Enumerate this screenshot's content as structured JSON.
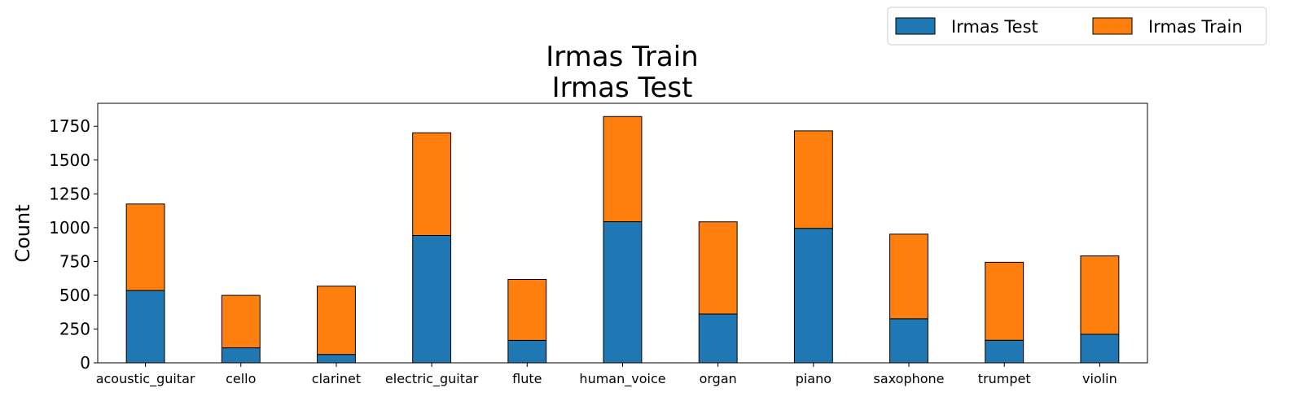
{
  "chart_data": {
    "type": "bar",
    "stacked": true,
    "title_lines": [
      "Irmas Train",
      "Irmas Test"
    ],
    "xlabel": "",
    "ylabel": "Count",
    "ylim": [
      0,
      1920
    ],
    "yticks": [
      0,
      250,
      500,
      750,
      1000,
      1250,
      1500,
      1750
    ],
    "grid": false,
    "legend_placement": "top-right, outside plot",
    "categories": [
      "acoustic_guitar",
      "cello",
      "clarinet",
      "electric_guitar",
      "flute",
      "human_voice",
      "organ",
      "piano",
      "saxophone",
      "trumpet",
      "violin"
    ],
    "series": [
      {
        "name": "Irmas Test",
        "color": "#1f77b4",
        "values": [
          535,
          111,
          62,
          942,
          166,
          1044,
          361,
          995,
          326,
          167,
          211
        ]
      },
      {
        "name": "Irmas Train",
        "color": "#ff7f0e",
        "values": [
          640,
          388,
          505,
          760,
          451,
          778,
          682,
          721,
          626,
          577,
          580
        ]
      }
    ]
  }
}
